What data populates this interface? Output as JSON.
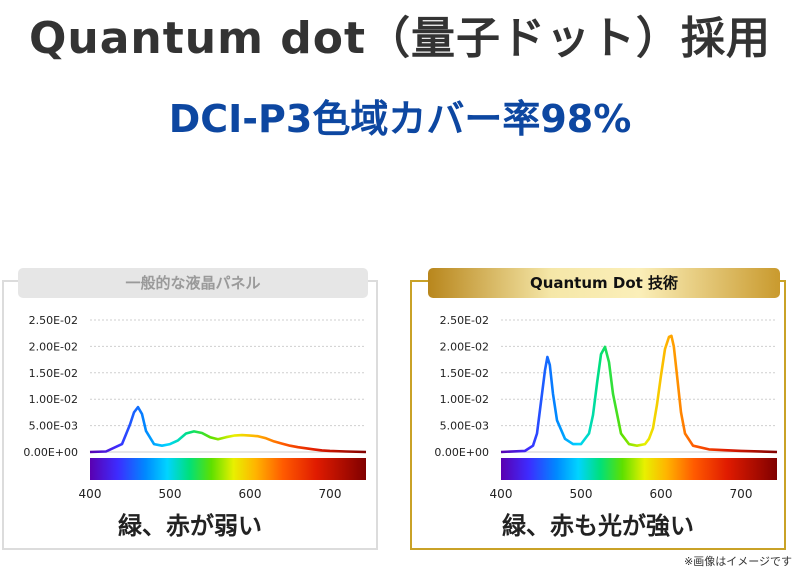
{
  "title": "Quantum dot（量子ドット）採用",
  "subtitle": "DCI-P3色域カバー率98%",
  "note": "※画像はイメージです",
  "panels": {
    "left": {
      "title": "一般的な液晶パネル",
      "caption": "緑、赤が弱い"
    },
    "right": {
      "title": "Quantum Dot 技術",
      "caption": "緑、赤も光が強い"
    }
  },
  "colors": {
    "subtitle": "#0d47a1",
    "gold": "#c9a227",
    "grey_border": "#dcdcdc"
  },
  "chart_data": [
    {
      "type": "line",
      "title": "一般的な液晶パネル",
      "y_ticks": [
        "2.50E-02",
        "2.00E-02",
        "1.50E-02",
        "1.00E-02",
        "5.00E-03",
        "0.00E+00"
      ],
      "x_ticks": [
        "400",
        "500",
        "600",
        "700"
      ],
      "xlim": [
        400,
        745
      ],
      "ylim": [
        0,
        0.025
      ],
      "grid": true,
      "series": [
        {
          "x": [
            400,
            420,
            440,
            450,
            455,
            460,
            465,
            470,
            480,
            490,
            500,
            510,
            520,
            530,
            540,
            550,
            560,
            570,
            580,
            590,
            600,
            610,
            620,
            630,
            640,
            650,
            660,
            670,
            680,
            690,
            700,
            720,
            745
          ],
          "y": [
            0,
            0.0001,
            0.0015,
            0.0052,
            0.0075,
            0.0085,
            0.0072,
            0.004,
            0.0015,
            0.0012,
            0.0015,
            0.0022,
            0.0035,
            0.0039,
            0.0036,
            0.0028,
            0.0024,
            0.0028,
            0.0031,
            0.0032,
            0.0031,
            0.003,
            0.0026,
            0.002,
            0.0016,
            0.0012,
            0.0009,
            0.0007,
            0.0005,
            0.0003,
            0.0002,
            0.0001,
            0
          ]
        }
      ]
    },
    {
      "type": "line",
      "title": "Quantum Dot 技術",
      "y_ticks": [
        "2.50E-02",
        "2.00E-02",
        "1.50E-02",
        "1.00E-02",
        "5.00E-03",
        "0.00E+00"
      ],
      "x_ticks": [
        "400",
        "500",
        "600",
        "700"
      ],
      "xlim": [
        400,
        745
      ],
      "ylim": [
        0,
        0.025
      ],
      "grid": true,
      "series": [
        {
          "x": [
            400,
            430,
            440,
            445,
            450,
            455,
            458,
            461,
            465,
            470,
            480,
            490,
            500,
            510,
            515,
            520,
            525,
            530,
            535,
            540,
            550,
            560,
            570,
            580,
            585,
            590,
            595,
            600,
            605,
            610,
            613,
            616,
            620,
            625,
            630,
            640,
            660,
            700,
            745
          ],
          "y": [
            0,
            0.0002,
            0.0012,
            0.0035,
            0.0095,
            0.0155,
            0.018,
            0.0165,
            0.011,
            0.006,
            0.0025,
            0.0015,
            0.0015,
            0.0035,
            0.007,
            0.013,
            0.0185,
            0.0199,
            0.017,
            0.011,
            0.0035,
            0.0015,
            0.0012,
            0.0015,
            0.0025,
            0.0045,
            0.009,
            0.0145,
            0.0195,
            0.0218,
            0.022,
            0.02,
            0.0145,
            0.0075,
            0.0035,
            0.0012,
            0.0005,
            0.0002,
            0
          ]
        }
      ]
    }
  ]
}
